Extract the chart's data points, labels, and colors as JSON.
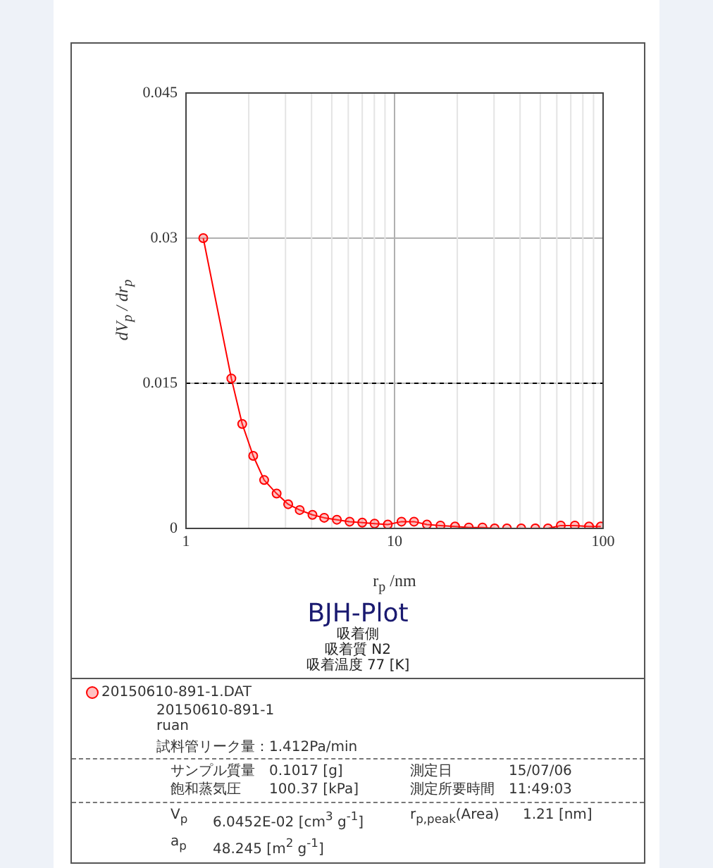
{
  "chart_data": {
    "type": "line",
    "title": "BJH-Plot",
    "subtitle": "吸着側",
    "xlabel": "r$_{p}$ /nm",
    "ylabel": "dV$_{p}$ / dr$_{p}$",
    "x": [
      1.21,
      1.65,
      1.86,
      2.1,
      2.37,
      2.72,
      3.09,
      3.51,
      4.04,
      4.6,
      5.29,
      6.09,
      7.0,
      8.02,
      9.28,
      10.8,
      12.4,
      14.3,
      16.6,
      19.5,
      22.7,
      26.4,
      30.2,
      34.6,
      40.5,
      47.3,
      54.4,
      62.7,
      73.2,
      85.6,
      97.5
    ],
    "series": [
      {
        "name": "20150610-891-1.DAT",
        "color": "#ff0000",
        "values": [
          0.03,
          0.0155,
          0.0108,
          0.0075,
          0.005,
          0.0036,
          0.0025,
          0.0019,
          0.0014,
          0.0011,
          0.0009,
          0.0007,
          0.0006,
          0.0005,
          0.0004,
          0.0007,
          0.0007,
          0.0004,
          0.0003,
          0.0002,
          0.0001,
          0.0001,
          0.0,
          0.0,
          0.0,
          0.0,
          0.0,
          0.0003,
          0.0003,
          0.0002,
          0.0002
        ]
      }
    ],
    "log": "x",
    "xlim": [
      1,
      100
    ],
    "xticks": [
      1,
      10,
      100
    ],
    "ylim": [
      0,
      0.045
    ],
    "yticks": [
      0,
      0.015,
      0.03,
      0.045
    ],
    "grid": true,
    "marker": "circle",
    "line_style": "solid",
    "legend": "bottom",
    "ref_lines": [
      {
        "axis": "y",
        "value": 0.015,
        "color": "#000000",
        "line_style": "dashed"
      }
    ],
    "annotations": [
      "吸着質 N2",
      "吸着温度 77 [K]",
      "20150610-891-1",
      "ruan",
      "試料管リーク量：1.412Pa/min",
      "サンプル質量 0.1017 [g]",
      "測定日 15/07/06",
      "飽和蒸気圧 100.37 [kPa]",
      "測定所要時間 11:49:03",
      "V$_{p}$ 6.0452E-02 [cm$^{3}$ g$^{-1}$]",
      "r$_{p,peak}$(Area) 1.21 [nm]",
      "a$_{p}$ 48.245 [m$^{2}$ g$^{-1}$]"
    ]
  }
}
